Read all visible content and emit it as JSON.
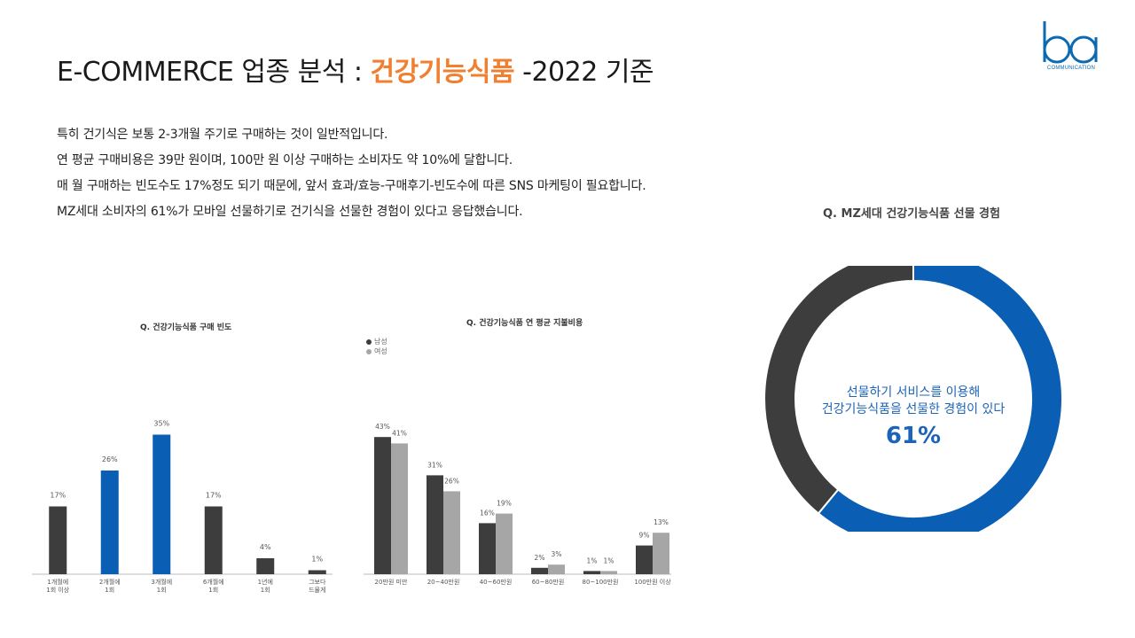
{
  "header": {
    "title_prefix": "E-COMMERCE 업종 분석 : ",
    "title_highlight": "건강기능식품",
    "title_suffix": " -2022 기준"
  },
  "logo": {
    "text": "ba",
    "subtext": "COMMUNICATION"
  },
  "body": {
    "lines": [
      "특히 건기식은 보통 2-3개월 주기로 구매하는 것이 일반적입니다.",
      "연 평균 구매비용은 39만 원이며, 100만 원 이상 구매하는 소비자도 약 10%에 달합니다.",
      "매 월 구매하는 빈도수도 17%정도 되기 때문에, 앞서 효과/효능-구매후기-빈도수에 따른 SNS 마케팅이 필요합니다.",
      "MZ세대 소비자의 61%가 모바일 선물하기로 건기식을 선물한 경험이 있다고 응답했습니다."
    ]
  },
  "colors": {
    "dark": "#3d3d3d",
    "blue": "#0a5fb4",
    "gray": "#a6a6a6",
    "accent": "#f07f2f"
  },
  "chart_data": [
    {
      "type": "bar",
      "title": "Q. 건강기능식품 구매 빈도",
      "categories": [
        [
          "1개월에",
          "1회 이상"
        ],
        [
          "2개월에",
          "1회"
        ],
        [
          "3개월에",
          "1회"
        ],
        [
          "6개월에",
          "1회"
        ],
        [
          "1년에",
          "1회"
        ],
        [
          "그보다",
          "드물게"
        ]
      ],
      "values": [
        17,
        26,
        35,
        17,
        4,
        1
      ],
      "value_labels": [
        "17%",
        "26%",
        "35%",
        "17%",
        "4%",
        "1%"
      ],
      "highlight": [
        false,
        true,
        true,
        false,
        false,
        false
      ],
      "ylim": [
        0,
        40
      ]
    },
    {
      "type": "bar",
      "title": "Q. 건강기능식품 연 평균 지불비용",
      "categories": [
        "20만원 미만",
        "20~40만원",
        "40~60만원",
        "60~80만원",
        "80~100만원",
        "100만원 이상"
      ],
      "series": [
        {
          "name": "남성",
          "values": [
            43,
            31,
            16,
            2,
            1,
            9
          ],
          "labels": [
            "43%",
            "31%",
            "16%",
            "2%",
            "1%",
            "9%"
          ]
        },
        {
          "name": "여성",
          "values": [
            41,
            26,
            19,
            3,
            1,
            13
          ],
          "labels": [
            "41%",
            "26%",
            "19%",
            "3%",
            "1%",
            "13%"
          ]
        }
      ],
      "legend": "top-left",
      "ylim": [
        0,
        50
      ]
    },
    {
      "type": "pie",
      "title": "Q. MZ세대 건강기능식품 선물 경험",
      "values": [
        61,
        39
      ],
      "center_lines": [
        "선물하기 서비스를 이용해",
        "건강기능식품을 선물한 경험이 있다"
      ],
      "center_value": "61%"
    }
  ]
}
